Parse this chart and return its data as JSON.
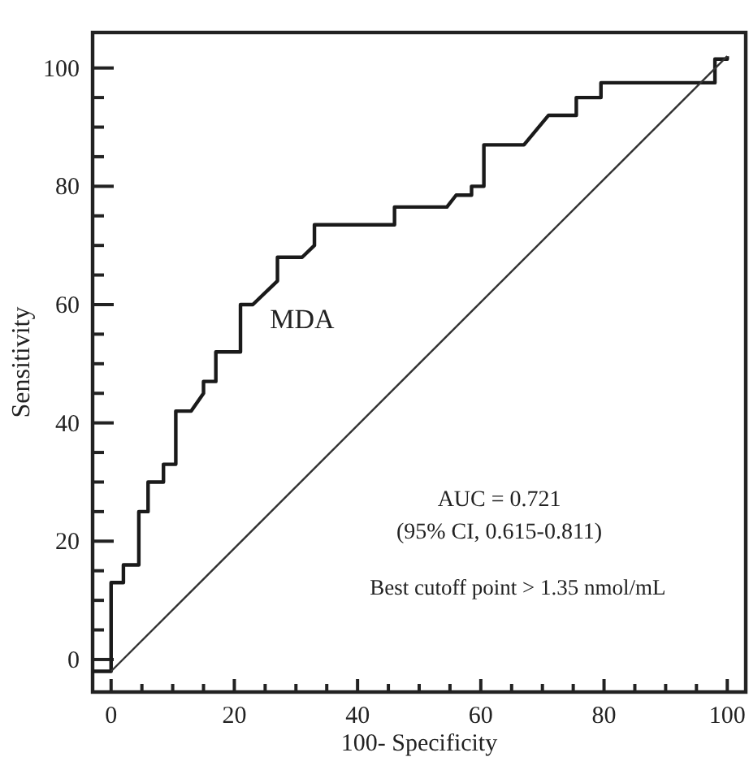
{
  "chart_data": {
    "type": "line",
    "xlabel": "100- Specificity",
    "ylabel": "Sensitivity",
    "xlim": [
      -3,
      103
    ],
    "ylim": [
      -5.5,
      106
    ],
    "xticks": [
      0,
      {
        "value": 5,
        "label": null
      },
      {
        "value": 10,
        "label": null
      },
      {
        "value": 15,
        "label": null
      },
      20,
      {
        "value": 25,
        "label": null
      },
      {
        "value": 30,
        "label": null
      },
      {
        "value": 35,
        "label": null
      },
      40,
      {
        "value": 45,
        "label": null
      },
      {
        "value": 50,
        "label": null
      },
      {
        "value": 55,
        "label": null
      },
      60,
      {
        "value": 65,
        "label": null
      },
      {
        "value": 70,
        "label": null
      },
      {
        "value": 75,
        "label": null
      },
      80,
      {
        "value": 85,
        "label": null
      },
      {
        "value": 90,
        "label": null
      },
      {
        "value": 95,
        "label": null
      },
      100
    ],
    "yticks": [
      0,
      {
        "value": 5,
        "label": null
      },
      {
        "value": 10,
        "label": null
      },
      {
        "value": 15,
        "label": null
      },
      20,
      {
        "value": 25,
        "label": null
      },
      {
        "value": 30,
        "label": null
      },
      {
        "value": 35,
        "label": null
      },
      40,
      {
        "value": 45,
        "label": null
      },
      {
        "value": 50,
        "label": null
      },
      {
        "value": 55,
        "label": null
      },
      60,
      {
        "value": 65,
        "label": null
      },
      {
        "value": 70,
        "label": null
      },
      {
        "value": 75,
        "label": null
      },
      80,
      {
        "value": 85,
        "label": null
      },
      {
        "value": 90,
        "label": null
      },
      {
        "value": 95,
        "label": null
      },
      100
    ],
    "grid": false,
    "marker": "none",
    "line_style": "solid",
    "series": [
      {
        "name": "MDA",
        "color": "#1a1a1a",
        "x": [
          -3,
          0,
          0,
          2,
          2,
          4.5,
          4.5,
          6,
          6,
          8.5,
          8.5,
          10.5,
          10.5,
          13,
          15,
          15,
          17,
          17,
          21,
          21,
          23,
          27,
          27,
          31,
          33,
          33,
          46,
          46,
          54.5,
          56,
          58.5,
          58.5,
          60.5,
          60.5,
          67,
          71,
          75.5,
          75.5,
          79.5,
          79.5,
          98,
          98,
          100,
          100
        ],
        "values": [
          -2,
          -2,
          13,
          13,
          16,
          16,
          25,
          25,
          30,
          30,
          33,
          33,
          42,
          42,
          45,
          47,
          47,
          52,
          52,
          60,
          60,
          64,
          68,
          68,
          70,
          73.5,
          73.5,
          76.5,
          76.5,
          78.5,
          78.5,
          80,
          80,
          87,
          87,
          92,
          92,
          95,
          95,
          97.5,
          97.5,
          101.5,
          101.5,
          102
        ]
      },
      {
        "color": "#333333",
        "x": [
          0,
          100
        ],
        "values": [
          -2,
          102
        ]
      }
    ],
    "annotations": [
      "AUC = 0.721",
      "(95% CI, 0.615-0.811)",
      "Best cutoff point > 1.35 nmol/mL"
    ]
  }
}
